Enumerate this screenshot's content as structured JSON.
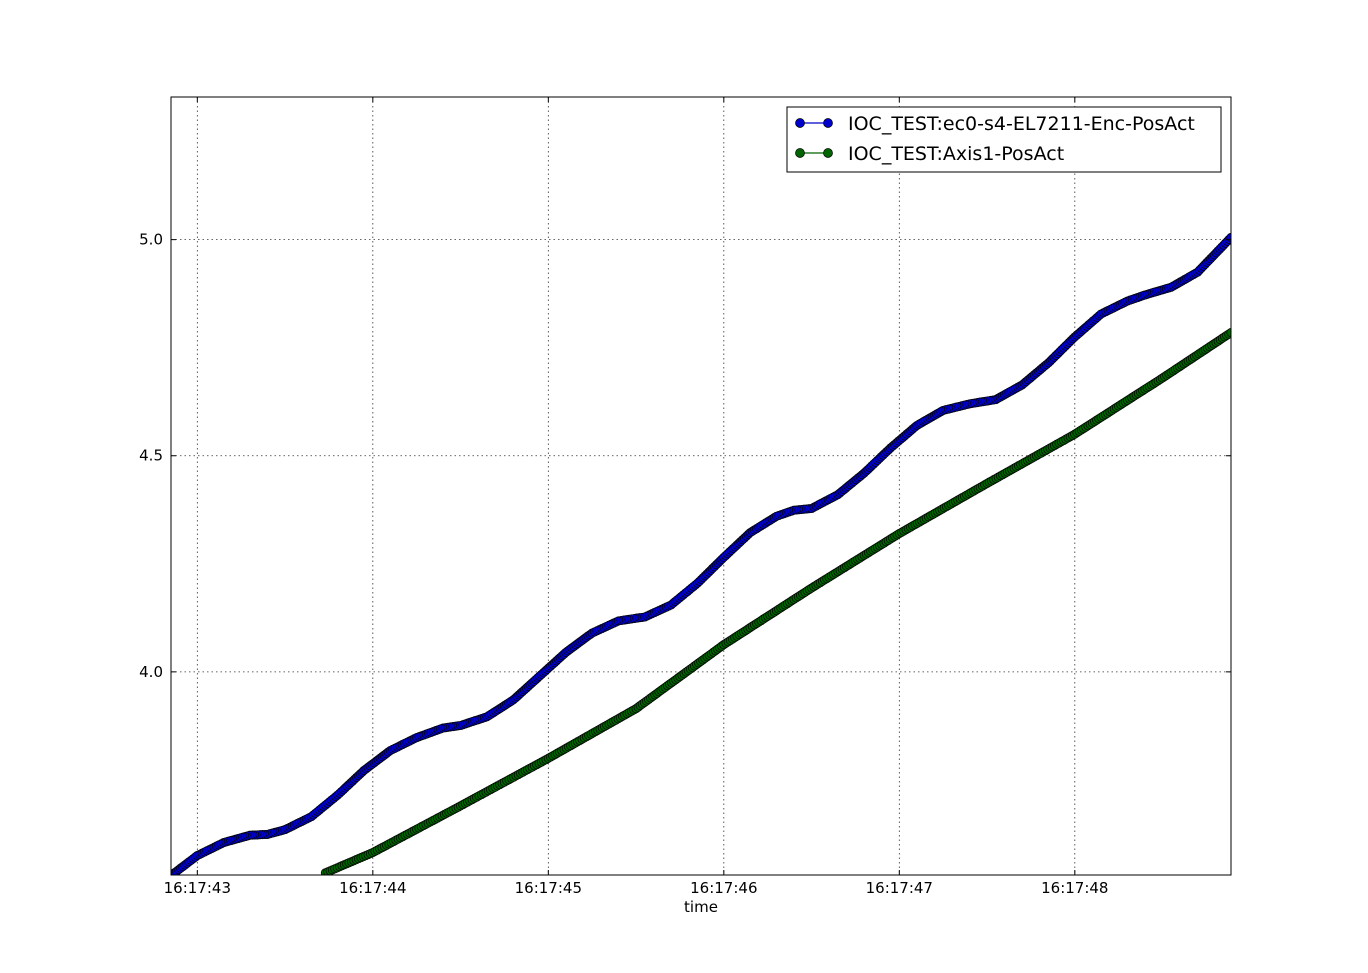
{
  "chart_data": {
    "type": "line",
    "xlabel": "time",
    "ylabel": "",
    "title": "",
    "grid": true,
    "legend_position": "top-right",
    "x_range": [
      "16:17:42.850",
      "16:17:48.890"
    ],
    "ylim": [
      3.53,
      5.33
    ],
    "x_ticks": [
      "16:17:43",
      "16:17:44",
      "16:17:45",
      "16:17:46",
      "16:17:47",
      "16:17:48"
    ],
    "y_ticks": [
      "4.0",
      "4.5",
      "5.0"
    ],
    "series": [
      {
        "name": "IOC_TEST:ec0-s4-EL7211-Enc-PosAct",
        "color": "#0000cc",
        "marker": "circle",
        "x": [
          "16:17:42.870",
          "16:17:43.000",
          "16:17:43.150",
          "16:17:43.300",
          "16:17:43.400",
          "16:17:43.500",
          "16:17:43.650",
          "16:17:43.800",
          "16:17:43.950",
          "16:17:44.100",
          "16:17:44.250",
          "16:17:44.400",
          "16:17:44.500",
          "16:17:44.650",
          "16:17:44.800",
          "16:17:44.950",
          "16:17:45.100",
          "16:17:45.250",
          "16:17:45.400",
          "16:17:45.550",
          "16:17:45.700",
          "16:17:45.850",
          "16:17:46.000",
          "16:17:46.150",
          "16:17:46.300",
          "16:17:46.400",
          "16:17:46.500",
          "16:17:46.650",
          "16:17:46.800",
          "16:17:46.950",
          "16:17:47.100",
          "16:17:47.250",
          "16:17:47.400",
          "16:17:47.550",
          "16:17:47.700",
          "16:17:47.850",
          "16:17:48.000",
          "16:17:48.150",
          "16:17:48.300",
          "16:17:48.400",
          "16:17:48.550",
          "16:17:48.700",
          "16:17:48.890"
        ],
        "y": [
          3.535,
          3.575,
          3.605,
          3.622,
          3.624,
          3.635,
          3.665,
          3.715,
          3.772,
          3.818,
          3.848,
          3.87,
          3.876,
          3.896,
          3.935,
          3.99,
          4.045,
          4.09,
          4.118,
          4.127,
          4.155,
          4.205,
          4.265,
          4.322,
          4.36,
          4.374,
          4.378,
          4.41,
          4.46,
          4.518,
          4.57,
          4.605,
          4.62,
          4.63,
          4.664,
          4.715,
          4.775,
          4.828,
          4.858,
          4.872,
          4.89,
          4.925,
          5.005
        ]
      },
      {
        "name": "IOC_TEST:Axis1-PosAct",
        "color": "#006400",
        "marker": "circle",
        "x": [
          "16:17:43.730",
          "16:17:44.000",
          "16:17:44.500",
          "16:17:45.000",
          "16:17:45.500",
          "16:17:46.000",
          "16:17:46.500",
          "16:17:47.000",
          "16:17:47.500",
          "16:17:48.000",
          "16:17:48.500",
          "16:17:48.890"
        ],
        "y": [
          3.535,
          3.582,
          3.69,
          3.8,
          3.915,
          4.063,
          4.194,
          4.32,
          4.436,
          4.55,
          4.68,
          4.785
        ]
      }
    ]
  }
}
